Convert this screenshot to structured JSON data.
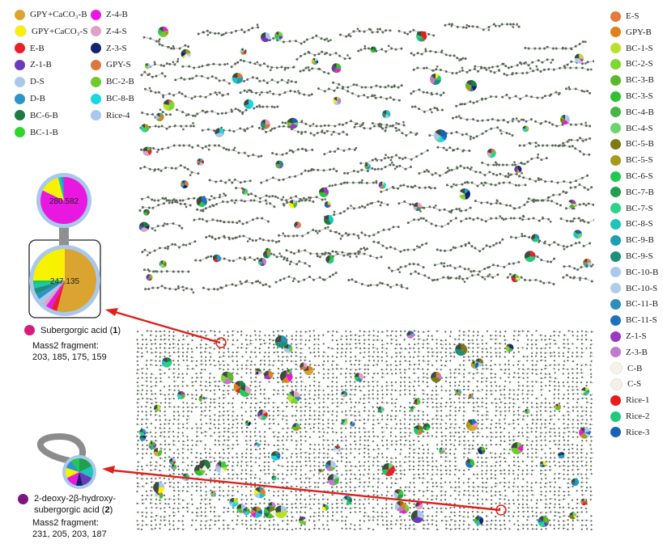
{
  "legend_left": [
    {
      "label": "GPY+CaCO₃-B",
      "color": "#dba430"
    },
    {
      "label": "GPY+CaCO₃-S",
      "color": "#f7f200"
    },
    {
      "label": "E-B",
      "color": "#e8202a"
    },
    {
      "label": "Z-1-B",
      "color": "#6a3bb8"
    },
    {
      "label": "D-S",
      "color": "#a9c8ea"
    },
    {
      "label": "D-B",
      "color": "#2a95c6"
    },
    {
      "label": "BC-6-B",
      "color": "#1e7b43"
    },
    {
      "label": "BC-1-B",
      "color": "#2ed62e"
    }
  ],
  "legend_mid": [
    {
      "label": "Z-4-B",
      "color": "#e818e0"
    },
    {
      "label": "Z-4-S",
      "color": "#e3a0c6"
    },
    {
      "label": "Z-3-S",
      "color": "#13236e"
    },
    {
      "label": "GPY-S",
      "color": "#d9773e"
    },
    {
      "label": "BC-2-B",
      "color": "#6fca2c"
    },
    {
      "label": "BC-8-B",
      "color": "#16d8e0"
    },
    {
      "label": "Rice-4",
      "color": "#a8c6ee"
    }
  ],
  "legend_right": [
    {
      "label": "E-S",
      "color": "#e37a3a"
    },
    {
      "label": "GPY-B",
      "color": "#e2801a"
    },
    {
      "label": "BC-1-S",
      "color": "#b9e02a"
    },
    {
      "label": "BC-2-S",
      "color": "#7cd82c"
    },
    {
      "label": "BC-3-B",
      "color": "#5ab92a"
    },
    {
      "label": "BC-3-S",
      "color": "#2fc12f"
    },
    {
      "label": "BC-4-B",
      "color": "#45b545"
    },
    {
      "label": "BC-4-S",
      "color": "#6cd46c"
    },
    {
      "label": "BC-5-B",
      "color": "#7c7a14"
    },
    {
      "label": "BC-5-S",
      "color": "#a89a18"
    },
    {
      "label": "BC-6-S",
      "color": "#22c855"
    },
    {
      "label": "BC-7-B",
      "color": "#1fa050"
    },
    {
      "label": "BC-7-S",
      "color": "#27d488"
    },
    {
      "label": "BC-8-S",
      "color": "#1ec4bc"
    },
    {
      "label": "BC-9-B",
      "color": "#1b9fb5"
    },
    {
      "label": "BC-9-S",
      "color": "#1f8f78"
    },
    {
      "label": "BC-10-B",
      "color": "#a9c8ea"
    },
    {
      "label": "BC-10-S",
      "color": "#b0cce8"
    },
    {
      "label": "BC-11-B",
      "color": "#2a8fba"
    },
    {
      "label": "BC-11-S",
      "color": "#1d72c0"
    },
    {
      "label": "Z-1-S",
      "color": "#9b39c2"
    },
    {
      "label": "Z-3-B",
      "color": "#c07acb"
    },
    {
      "label": "C-B",
      "color": "#f6f3ea"
    },
    {
      "label": "C-S",
      "color": "#f3f1e8"
    },
    {
      "label": "Rice-1",
      "color": "#e81a1a"
    },
    {
      "label": "Rice-2",
      "color": "#1fca7a"
    },
    {
      "label": "Rice-3",
      "color": "#1762b5"
    }
  ],
  "callout1": {
    "parent_node_label": "280.582",
    "node_label": "247.135",
    "compound_name": "Subergorgic acid (",
    "compound_number": "1",
    "compound_close": ")",
    "compound_color": "#d91a7e",
    "fragment_title": "Mass2 fragment:",
    "fragment_values": "203, 185, 175, 159"
  },
  "callout2": {
    "compound_line1": "2-deoxy-2β-hydroxy-",
    "compound_line2": "subergorgic acid (",
    "compound_number": "2",
    "compound_close": ")",
    "compound_color": "#7d1580",
    "fragment_title": "Mass2 fragment:",
    "fragment_values": "231, 205, 203, 187"
  },
  "arrow_color": "#e0201c",
  "node_color": "#5a6a58",
  "edge_color": "#8c8c8c"
}
